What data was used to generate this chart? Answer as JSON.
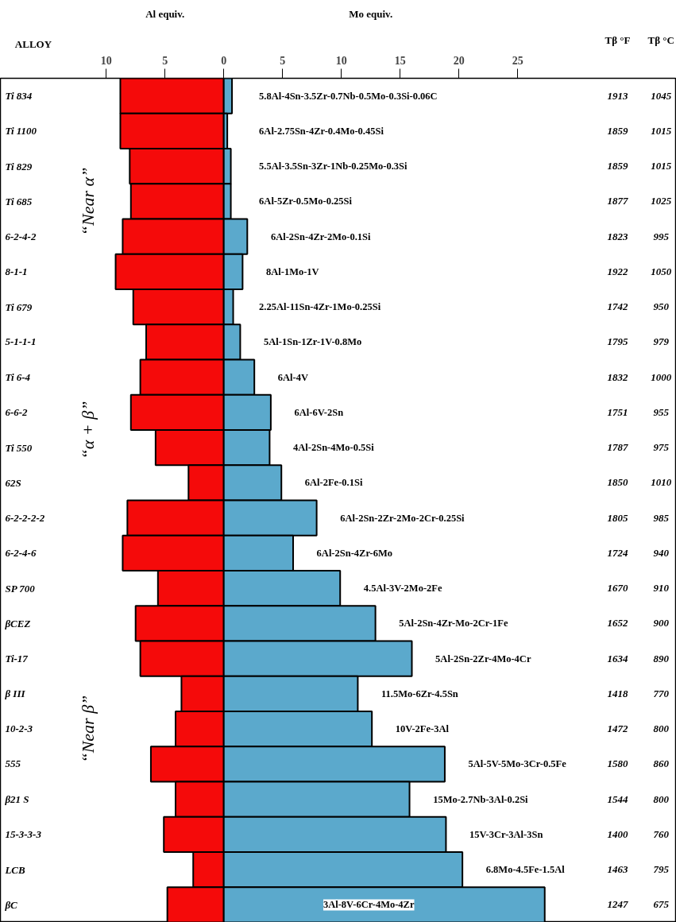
{
  "chart_data": {
    "type": "bar",
    "orientation": "horizontal",
    "stacked": true,
    "categories": [
      "Ti 834",
      "Ti 1100",
      "Ti 829",
      "Ti 685",
      "6-2-4-2",
      "8-1-1",
      "Ti 679",
      "5-1-1-1",
      "Ti 6-4",
      "6-6-2",
      "Ti 550",
      "62S",
      "6-2-2-2-2",
      "6-2-4-6",
      "SP 700",
      "βCEZ",
      "Ti-17",
      "β III",
      "10-2-3",
      "555",
      "β21 S",
      "15-3-3-3",
      "LCB",
      "βC"
    ],
    "series": [
      {
        "color": "#f50a0a",
        "values": [
          -8.8,
          -8.8,
          -8.0,
          -7.9,
          -8.6,
          -9.2,
          -7.7,
          -6.6,
          -7.1,
          -7.9,
          -5.8,
          -3.0,
          -8.2,
          -8.6,
          -5.6,
          -7.5,
          -7.1,
          -3.6,
          -4.1,
          -6.2,
          -4.1,
          -5.1,
          -2.6,
          -4.8
        ]
      },
      {
        "color": "#5ba9cc",
        "values": [
          0.7,
          0.3,
          0.6,
          0.6,
          2.0,
          1.6,
          0.8,
          1.4,
          2.6,
          4.0,
          3.9,
          4.9,
          7.9,
          5.9,
          9.9,
          12.9,
          16.0,
          11.4,
          12.6,
          18.8,
          15.8,
          18.9,
          20.3,
          27.3
        ]
      }
    ],
    "xlim": [
      -19,
      38.5
    ],
    "xticks": [
      {
        "value": -10,
        "label": "10"
      },
      {
        "value": -5,
        "label": "5"
      },
      0,
      5,
      10,
      15,
      20,
      25
    ],
    "xlabel": "Mo equiv.",
    "annotations": [
      "Al equiv.",
      "ALLOY",
      "Tβ °F",
      "Tβ °C",
      "“Near α”",
      "“α + β”",
      "“Near β”",
      "5.8Al-4Sn-3.5Zr-0.7Nb-0.5Mo-0.3Si-0.06C",
      "6Al-2.75Sn-4Zr-0.4Mo-0.45Si",
      "5.5Al-3.5Sn-3Zr-1Nb-0.25Mo-0.3Si",
      "6Al-5Zr-0.5Mo-0.25Si",
      "6Al-2Sn-4Zr-2Mo-0.1Si",
      "8Al-1Mo-1V",
      "2.25Al-11Sn-4Zr-1Mo-0.25Si",
      "5Al-1Sn-1Zr-1V-0.8Mo",
      "6Al-4V",
      "6Al-6V-2Sn",
      "4Al-2Sn-4Mo-0.5Si",
      "6Al-2Fe-0.1Si",
      "6Al-2Sn-2Zr-2Mo-2Cr-0.25Si",
      "6Al-2Sn-4Zr-6Mo",
      "4.5Al-3V-2Mo-2Fe",
      "5Al-2Sn-4Zr-Mo-2Cr-1Fe",
      "5Al-2Sn-2Zr-4Mo-4Cr",
      "11.5Mo-6Zr-4.5Sn",
      "10V-2Fe-3Al",
      "5Al-5V-5Mo-3Cr-0.5Fe",
      "15Mo-2.7Nb-3Al-0.2Si",
      "15V-3Cr-3Al-3Sn",
      "6.8Mo-4.5Fe-1.5Al",
      "3Al-8V-6Cr-4Mo-4Zr",
      "1913",
      "1045",
      "1859",
      "1015",
      "1859",
      "1015",
      "1877",
      "1025",
      "1823",
      "995",
      "1922",
      "1050",
      "1742",
      "950",
      "1795",
      "979",
      "1832",
      "1000",
      "1751",
      "955",
      "1787",
      "975",
      "1850",
      "1010",
      "1805",
      "985",
      "1724",
      "940",
      "1670",
      "910",
      "1652",
      "900",
      "1634",
      "890",
      "1418",
      "770",
      "1472",
      "800",
      "1580",
      "860",
      "1544",
      "800",
      "1400",
      "760",
      "1463",
      "795",
      "1247",
      "675"
    ]
  }
}
